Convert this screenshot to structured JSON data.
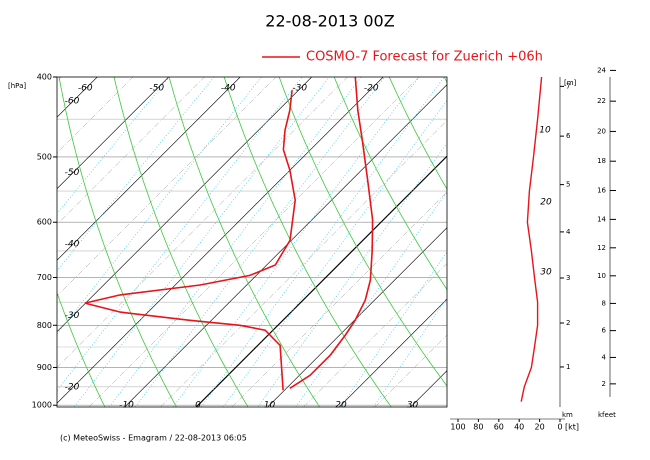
{
  "chart_data": {
    "type": "emagram",
    "title": "22-08-2013  00Z",
    "ylabel": "[hPa]",
    "ylim": [
      400,
      1005
    ],
    "yticks": [
      400,
      500,
      600,
      700,
      800,
      900,
      1000
    ],
    "log_scale": true,
    "series": [
      {
        "name": "COSMO-7 Forecast for Zuerich   +06h",
        "color": "#e8141b",
        "pressure": [
          954,
          920,
          870,
          822,
          789,
          746,
          705,
          649,
          596,
          534,
          477,
          439,
          400
        ],
        "values": [
          10.5,
          11.5,
          11.5,
          10.8,
          10.1,
          8.7,
          6.6,
          2.7,
          -1.5,
          -7.7,
          -14.1,
          -18.9,
          -23.9
        ]
      },
      {
        "color": "#e8141b",
        "pressure": [
          959,
          846,
          811,
          800,
          789,
          771,
          752,
          735,
          715,
          696,
          676,
          631,
          564,
          519,
          490,
          464,
          439,
          415
        ],
        "values": [
          9.8,
          3.1,
          -1.1,
          -5.3,
          -13.0,
          -23.9,
          -30.1,
          -26.3,
          -16.5,
          -10.9,
          -8.8,
          -10.2,
          -15.1,
          -20.0,
          -23.8,
          -26.3,
          -28.4,
          -30.9
        ]
      }
    ],
    "isotherm_labels_top": [
      -60,
      -50,
      -40,
      -30,
      -20
    ],
    "isotherm_labels_left": [
      -60,
      -50,
      -40,
      -30,
      -20
    ],
    "isotherm_labels_bottom": [
      -10,
      0,
      10,
      20,
      30
    ],
    "height_label": "[m]",
    "height_ticks": [
      1,
      2,
      3,
      4,
      5,
      6,
      7
    ],
    "km_label": "km",
    "kfeet_label": "kfeet",
    "kfeet_ticks": [
      2,
      4,
      6,
      8,
      10,
      12,
      14,
      16,
      18,
      20,
      22,
      24
    ],
    "wind_label": "[kt]",
    "wind_lim": [
      100,
      0
    ],
    "wind_ticks": [
      100,
      80,
      60,
      40,
      20,
      0
    ],
    "wind": {
      "color": "#e8141b",
      "pressure": [
        990,
        950,
        900,
        850,
        800,
        750,
        700,
        650,
        600,
        550,
        500,
        450,
        400
      ],
      "values": [
        38,
        35,
        28,
        25,
        22,
        22,
        25,
        28,
        32,
        30,
        26,
        22,
        18
      ]
    },
    "wind_annotations": [
      10,
      20,
      30
    ],
    "footer": "(c) MeteoSwiss - Emagram  /  22-08-2013 06:05"
  }
}
